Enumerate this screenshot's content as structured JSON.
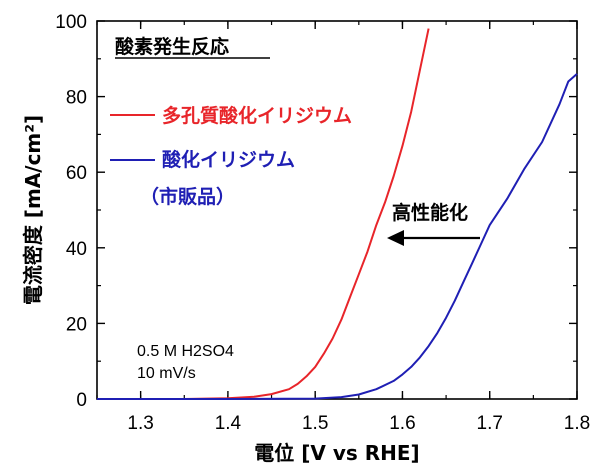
{
  "chart_data": {
    "type": "line",
    "xlabel": "電位 [V vs RHE]",
    "ylabel": "電流密度 [mA/cm²]",
    "xlim": [
      1.25,
      1.8
    ],
    "ylim": [
      0,
      100
    ],
    "xticks": [
      "1.3",
      "1.4",
      "1.5",
      "1.6",
      "1.7",
      "1.8"
    ],
    "yticks": [
      "0",
      "20",
      "40",
      "60",
      "80",
      "100"
    ],
    "title_annotation": "酸素発生反応",
    "conditions": [
      "0.5 M H2SO4",
      "10 mV/s"
    ],
    "arrow_label": "高性能化",
    "grid": false,
    "legend_placement": "upper-left",
    "series": [
      {
        "name": "多孔質酸化イリジウム",
        "color": "#e8252a",
        "x": [
          1.25,
          1.3,
          1.35,
          1.4,
          1.43,
          1.45,
          1.47,
          1.48,
          1.49,
          1.5,
          1.51,
          1.52,
          1.53,
          1.54,
          1.55,
          1.56,
          1.57,
          1.58,
          1.59,
          1.6,
          1.61,
          1.62,
          1.63
        ],
        "y": [
          0,
          0,
          0,
          0.2,
          0.6,
          1.3,
          2.6,
          4,
          6,
          8.5,
          12,
          16,
          21,
          27,
          33,
          39,
          46,
          52,
          59,
          67,
          76,
          87,
          98
        ]
      },
      {
        "name": "酸化イリジウム",
        "name_sub": "（市販品）",
        "color": "#1f1fb4",
        "x": [
          1.25,
          1.4,
          1.5,
          1.53,
          1.55,
          1.57,
          1.59,
          1.6,
          1.61,
          1.62,
          1.63,
          1.64,
          1.65,
          1.66,
          1.67,
          1.68,
          1.69,
          1.7,
          1.72,
          1.74,
          1.76,
          1.78,
          1.79,
          1.8
        ],
        "y": [
          0,
          0,
          0.1,
          0.5,
          1.2,
          2.6,
          4.8,
          6.5,
          8.5,
          11,
          14,
          17.5,
          21.5,
          26,
          31,
          36,
          41,
          46,
          53,
          61,
          68,
          78,
          84,
          86
        ]
      }
    ]
  }
}
